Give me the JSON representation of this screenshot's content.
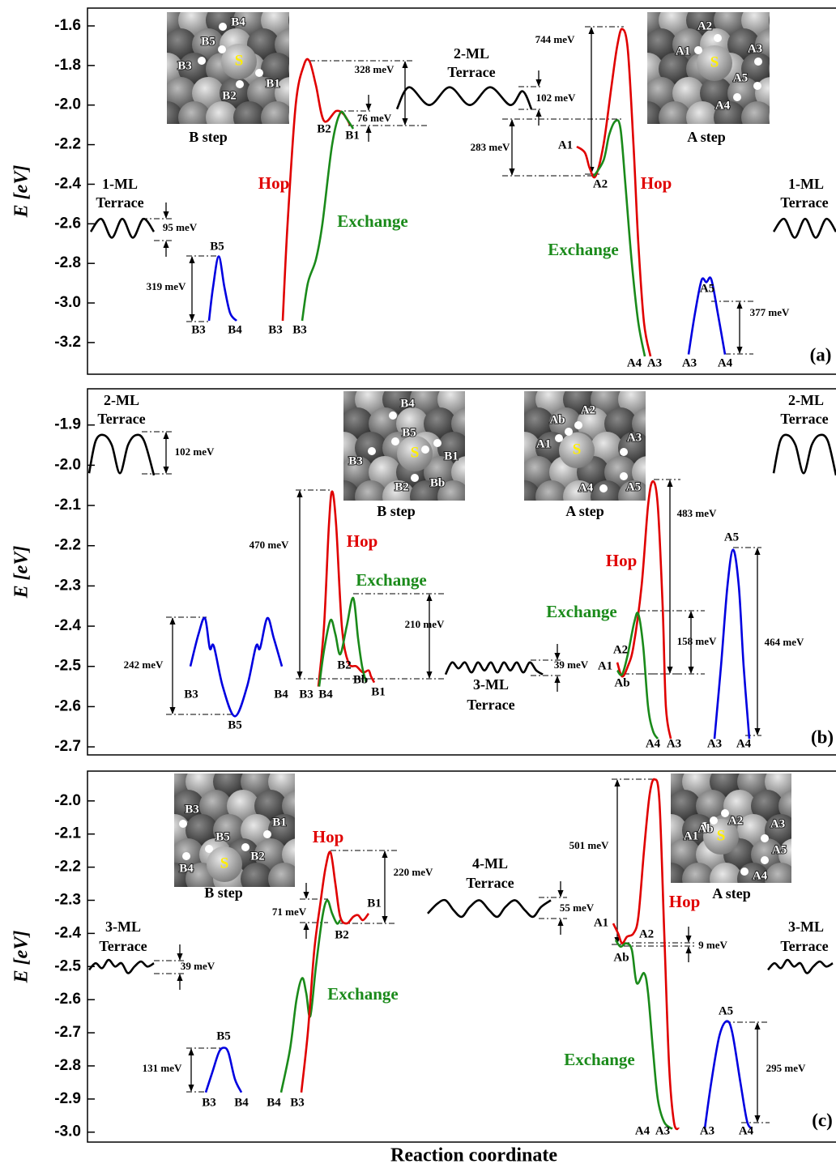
{
  "chart_data": [
    {
      "type": "line",
      "ylabel": "E [eV]",
      "ylim": [
        -3.36,
        -1.51
      ],
      "xlim": [
        0,
        924
      ],
      "yticks": [
        -1.6,
        -1.8,
        {
          "value": -2,
          "label": "-2.0"
        },
        -2.2,
        -2.4,
        -2.6,
        -2.8,
        {
          "value": -3,
          "label": "-3.0"
        },
        -3.2
      ],
      "series": [
        {
          "color": "#000000",
          "x": [
            4,
            17,
            30,
            43,
            56,
            69,
            82
          ],
          "values": [
            -2.64,
            -2.575,
            -2.67,
            -2.575,
            -2.67,
            -2.575,
            -2.64
          ]
        },
        {
          "color": "#000000",
          "x": [
            847,
            860,
            873,
            886,
            899,
            912,
            924
          ],
          "values": [
            -2.64,
            -2.575,
            -2.67,
            -2.575,
            -2.67,
            -2.575,
            -2.64
          ]
        },
        {
          "color": "#0000e0",
          "x": [
            150,
            155,
            162,
            169,
            176,
            184
          ],
          "values": [
            -3.09,
            -2.92,
            -2.765,
            -2.92,
            -3.05,
            -3.09
          ]
        },
        {
          "color": "#e00000",
          "x": [
            241,
            247,
            257,
            267,
            274,
            282,
            292,
            307,
            317,
            324
          ],
          "values": [
            -3.09,
            -2.6,
            -2.0,
            -1.8,
            -1.778,
            -1.9,
            -2.08,
            -2.03,
            -2.05,
            -2.1
          ]
        },
        {
          "color": "#1a8a1a",
          "x": [
            265,
            272,
            282,
            290,
            302,
            312,
            320,
            328
          ],
          "values": [
            -3.09,
            -2.9,
            -2.78,
            -2.6,
            -2.2,
            -2.04,
            -2.07,
            -2.12
          ]
        },
        {
          "color": "#000000",
          "x": [
            382,
            397,
            422,
            447,
            472,
            497,
            522,
            537,
            548
          ],
          "values": [
            -2.02,
            -1.91,
            -2.0,
            -1.91,
            -2.0,
            -1.91,
            -2.0,
            -1.93,
            -2.02
          ]
        },
        {
          "color": "#e00000",
          "x": [
            604,
            614,
            620,
            627,
            637,
            647,
            654,
            660,
            667,
            674,
            680,
            687,
            695
          ],
          "values": [
            -2.21,
            -2.24,
            -2.32,
            -2.36,
            -2.2,
            -1.9,
            -1.7,
            -1.615,
            -1.72,
            -2.2,
            -2.7,
            -3.1,
            -3.27
          ]
        },
        {
          "color": "#1a8a1a",
          "x": [
            625,
            637,
            644,
            652,
            658,
            664,
            672,
            680,
            688
          ],
          "values": [
            -2.36,
            -2.28,
            -2.15,
            -2.08,
            -2.12,
            -2.4,
            -2.8,
            -3.1,
            -3.27
          ]
        },
        {
          "color": "#0000e0",
          "x": [
            742,
            750,
            758,
            764,
            770,
            778,
            787
          ],
          "values": [
            -3.26,
            -3.05,
            -2.885,
            -2.895,
            -2.88,
            -3.05,
            -3.26
          ]
        }
      ],
      "annotations": [
        "1-ML",
        "Terrace",
        "95 meV",
        "B5",
        "319 meV",
        "B3",
        "B4",
        "B3",
        "B3",
        "Hop",
        "Exchange",
        "B2",
        "B1",
        "328 meV",
        "76 meV",
        "2-ML",
        "Terrace",
        "102 meV",
        "283 meV",
        "744 meV",
        "A1",
        "A2",
        "Hop",
        "Exchange",
        "A5",
        "377 meV",
        "A4",
        "A3",
        "A3",
        "A4",
        "1-ML",
        "Terrace",
        "(a)"
      ],
      "insets": [
        {
          "title": "B step",
          "labels": [
            "B4",
            "B5",
            "B3",
            "S",
            "B1",
            "B2"
          ]
        },
        {
          "title": "A step",
          "labels": [
            "A2",
            "A1",
            "S",
            "A3",
            "A5",
            "A4"
          ]
        }
      ]
    },
    {
      "type": "line",
      "ylabel": "E [eV]",
      "ylim": [
        -2.72,
        -1.81
      ],
      "xlim": [
        0,
        924
      ],
      "yticks": [
        -1.9,
        {
          "value": -2,
          "label": "-2.0"
        },
        -2.1,
        -2.2,
        -2.3,
        -2.4,
        -2.5,
        -2.6,
        -2.7
      ],
      "series": [
        {
          "color": "#000000",
          "x": [
            2,
            10,
            20,
            30,
            40,
            50,
            60,
            70,
            82
          ],
          "values": [
            -2.02,
            -1.94,
            -1.925,
            -1.95,
            -2.02,
            -1.95,
            -1.925,
            -1.94,
            -2.025
          ]
        },
        {
          "color": "#000000",
          "x": [
            847,
            855,
            864,
            874,
            884,
            894,
            904,
            914,
            924
          ],
          "values": [
            -2.02,
            -1.94,
            -1.925,
            -1.95,
            -2.02,
            -1.95,
            -1.925,
            -1.94,
            -2.025
          ]
        },
        {
          "color": "#0000e0",
          "x": [
            127,
            137,
            145,
            151,
            156,
            167,
            182,
            197,
            208,
            213,
            222,
            230,
            240
          ],
          "values": [
            -2.5,
            -2.42,
            -2.38,
            -2.455,
            -2.45,
            -2.55,
            -2.624,
            -2.55,
            -2.45,
            -2.455,
            -2.38,
            -2.43,
            -2.5
          ]
        },
        {
          "color": "#e00000",
          "x": [
            285,
            292,
            298,
            302,
            307,
            314,
            322,
            332,
            340,
            347,
            350,
            354
          ],
          "values": [
            -2.55,
            -2.4,
            -2.15,
            -2.065,
            -2.15,
            -2.4,
            -2.49,
            -2.5,
            -2.515,
            -2.51,
            -2.525,
            -2.54
          ]
        },
        {
          "color": "#1a8a1a",
          "x": [
            286,
            292,
            300,
            306,
            312,
            320,
            328,
            334,
            339,
            344
          ],
          "values": [
            -2.55,
            -2.46,
            -2.385,
            -2.42,
            -2.47,
            -2.4,
            -2.33,
            -2.43,
            -2.5,
            -2.54
          ]
        },
        {
          "color": "#000000",
          "x": [
            442,
            450,
            458,
            466,
            474,
            482,
            490,
            498,
            506,
            514,
            522,
            530,
            538,
            546,
            554,
            562
          ],
          "values": [
            -2.52,
            -2.49,
            -2.505,
            -2.49,
            -2.515,
            -2.49,
            -2.51,
            -2.49,
            -2.515,
            -2.49,
            -2.51,
            -2.49,
            -2.515,
            -2.49,
            -2.51,
            -2.52
          ]
        },
        {
          "color": "#e00000",
          "x": [
            654,
            660,
            667,
            674,
            684,
            692,
            698,
            704,
            710,
            714,
            720
          ],
          "values": [
            -2.49,
            -2.525,
            -2.5,
            -2.45,
            -2.3,
            -2.1,
            -2.04,
            -2.1,
            -2.35,
            -2.6,
            -2.68
          ]
        },
        {
          "color": "#1a8a1a",
          "x": [
            654,
            660,
            667,
            675,
            680,
            686,
            692,
            698,
            704
          ],
          "values": [
            -2.51,
            -2.52,
            -2.47,
            -2.39,
            -2.37,
            -2.45,
            -2.6,
            -2.66,
            -2.68
          ]
        },
        {
          "color": "#0000e0",
          "x": [
            774,
            782,
            790,
            797,
            804,
            810,
            817
          ],
          "values": [
            -2.68,
            -2.5,
            -2.3,
            -2.21,
            -2.3,
            -2.5,
            -2.68
          ]
        }
      ],
      "annotations": [
        "2-ML",
        "Terrace",
        "102 meV",
        "242 meV",
        "B3",
        "B5",
        "B4",
        "470 meV",
        "Hop",
        "Exchange",
        "210 meV",
        "B2",
        "Bb",
        "B1",
        "B3",
        "B4",
        "3-ML",
        "Terrace",
        "39 meV",
        "A2",
        "A1",
        "Ab",
        "Hop",
        "Exchange",
        "483 meV",
        "158 meV",
        "A5",
        "464 meV",
        "A4",
        "A3",
        "A3",
        "A4",
        "2-ML",
        "Terrace",
        "(b)"
      ],
      "insets": [
        {
          "title": "B step",
          "labels": [
            "B4",
            "B5",
            "B3",
            "S",
            "B1",
            "B2",
            "Bb"
          ]
        },
        {
          "title": "A step",
          "labels": [
            "Ab",
            "A2",
            "A1",
            "S",
            "A3",
            "A4",
            "A5"
          ]
        }
      ]
    },
    {
      "type": "line",
      "ylabel": "E [eV]",
      "xlabel": "Reaction coordinate",
      "ylim": [
        -3.03,
        -1.91
      ],
      "xlim": [
        0,
        924
      ],
      "yticks": [
        {
          "value": -2,
          "label": "-2.0"
        },
        -2.1,
        -2.2,
        -2.3,
        -2.4,
        -2.5,
        -2.6,
        -2.7,
        -2.8,
        -2.9,
        {
          "value": -3,
          "label": "-3.0"
        }
      ],
      "series": [
        {
          "color": "#000000",
          "x": [
            2,
            10,
            18,
            26,
            34,
            42,
            50,
            58,
            66,
            74,
            82
          ],
          "values": [
            -2.51,
            -2.49,
            -2.505,
            -2.48,
            -2.5,
            -2.49,
            -2.52,
            -2.5,
            -2.485,
            -2.5,
            -2.49
          ]
        },
        {
          "color": "#000000",
          "x": [
            840,
            848,
            856,
            864,
            872,
            880,
            888,
            896,
            904,
            912,
            920
          ],
          "values": [
            -2.51,
            -2.49,
            -2.505,
            -2.48,
            -2.5,
            -2.49,
            -2.52,
            -2.5,
            -2.485,
            -2.5,
            -2.49
          ]
        },
        {
          "color": "#0000e0",
          "x": [
            146,
            154,
            162,
            168,
            174,
            182,
            190
          ],
          "values": [
            -2.88,
            -2.82,
            -2.76,
            -2.745,
            -2.76,
            -2.84,
            -2.88
          ]
        },
        {
          "color": "#1a8a1a",
          "x": [
            239,
            250,
            258,
            265,
            270,
            275,
            282,
            290,
            296,
            302,
            308,
            312
          ],
          "values": [
            -2.88,
            -2.75,
            -2.6,
            -2.535,
            -2.58,
            -2.65,
            -2.5,
            -2.35,
            -2.3,
            -2.34,
            -2.37,
            -2.36
          ]
        },
        {
          "color": "#e00000",
          "x": [
            264,
            272,
            280,
            288,
            294,
            300,
            306,
            312,
            320,
            328,
            334,
            340,
            347
          ],
          "values": [
            -2.88,
            -2.7,
            -2.45,
            -2.3,
            -2.2,
            -2.155,
            -2.25,
            -2.35,
            -2.37,
            -2.35,
            -2.345,
            -2.36,
            -2.34
          ]
        },
        {
          "color": "#000000",
          "x": [
            420,
            432,
            442,
            452,
            462,
            472,
            484,
            496,
            506,
            516,
            528,
            540,
            550,
            560,
            572
          ],
          "values": [
            -2.34,
            -2.31,
            -2.3,
            -2.33,
            -2.35,
            -2.32,
            -2.3,
            -2.33,
            -2.35,
            -2.32,
            -2.3,
            -2.33,
            -2.35,
            -2.32,
            -2.3
          ]
        },
        {
          "color": "#e00000",
          "x": [
            649,
            655,
            660,
            666,
            674,
            680,
            687,
            694,
            700,
            706,
            712,
            718,
            724,
            730
          ],
          "values": [
            -2.37,
            -2.4,
            -2.43,
            -2.41,
            -2.4,
            -2.35,
            -2.15,
            -1.98,
            -1.935,
            -2.0,
            -2.4,
            -2.8,
            -2.97,
            -2.99
          ]
        },
        {
          "color": "#1a8a1a",
          "x": [
            652,
            658,
            665,
            672,
            678,
            687,
            692,
            698,
            704,
            712,
            722
          ],
          "values": [
            -2.42,
            -2.44,
            -2.43,
            -2.45,
            -2.55,
            -2.52,
            -2.58,
            -2.75,
            -2.9,
            -2.97,
            -2.99
          ]
        },
        {
          "color": "#0000e0",
          "x": [
            762,
            770,
            780,
            789,
            796,
            806,
            814,
            820
          ],
          "values": [
            -2.99,
            -2.85,
            -2.71,
            -2.665,
            -2.7,
            -2.85,
            -2.965,
            -2.99
          ]
        }
      ],
      "annotations": [
        "3-ML",
        "Terrace",
        "39 meV",
        "B5",
        "131 meV",
        "B3",
        "B4",
        "B4",
        "B3",
        "Hop",
        "71 meV",
        "220 meV",
        "B1",
        "B2",
        "Exchange",
        "4-ML",
        "Terrace",
        "55 meV",
        "501 meV",
        "A1",
        "A2",
        "Ab",
        "Hop",
        "9 meV",
        "Exchange",
        "A5",
        "295 meV",
        "A4",
        "A3",
        "A3",
        "A4",
        "3-ML",
        "Terrace",
        "(c)"
      ],
      "insets": [
        {
          "title": "B step",
          "labels": [
            "B3",
            "B1",
            "B5",
            "B2",
            "S",
            "B4"
          ]
        },
        {
          "title": "A step",
          "labels": [
            "Ab",
            "A2",
            "A1",
            "S",
            "A3",
            "A5",
            "A4"
          ]
        }
      ]
    }
  ]
}
